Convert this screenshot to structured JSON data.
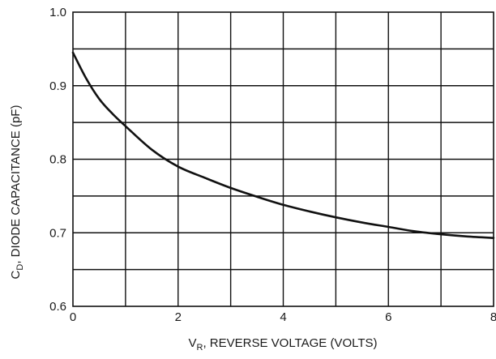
{
  "chart_data": {
    "type": "line",
    "title": "",
    "xlabel": {
      "main": "V",
      "sub": "R",
      "rest": ", REVERSE VOLTAGE (VOLTS)"
    },
    "ylabel": {
      "main": "C",
      "sub": "D",
      "rest": ", DIODE CAPACITANCE (pF)"
    },
    "xlim": [
      0,
      8
    ],
    "ylim": [
      0.6,
      1.0
    ],
    "x_ticks": [
      0,
      2,
      4,
      6,
      8
    ],
    "x_tick_labels": [
      "0",
      "2",
      "4",
      "6",
      "8"
    ],
    "y_ticks": [
      0.6,
      0.7,
      0.8,
      0.9,
      1.0
    ],
    "y_tick_labels": [
      "0.6",
      "0.7",
      "0.8",
      "0.9",
      "1.0"
    ],
    "grid": true,
    "grid_x_step": 1,
    "grid_y_step": 0.05,
    "series": [
      {
        "x": [
          0,
          0.25,
          0.5,
          0.75,
          1.0,
          1.5,
          2.0,
          2.5,
          3.0,
          3.5,
          4.0,
          4.5,
          5.0,
          5.5,
          6.0,
          6.5,
          7.0,
          7.5,
          8.0
        ],
        "y": [
          0.945,
          0.91,
          0.882,
          0.862,
          0.845,
          0.813,
          0.79,
          0.775,
          0.761,
          0.749,
          0.738,
          0.729,
          0.721,
          0.714,
          0.708,
          0.702,
          0.698,
          0.695,
          0.693
        ]
      }
    ]
  }
}
